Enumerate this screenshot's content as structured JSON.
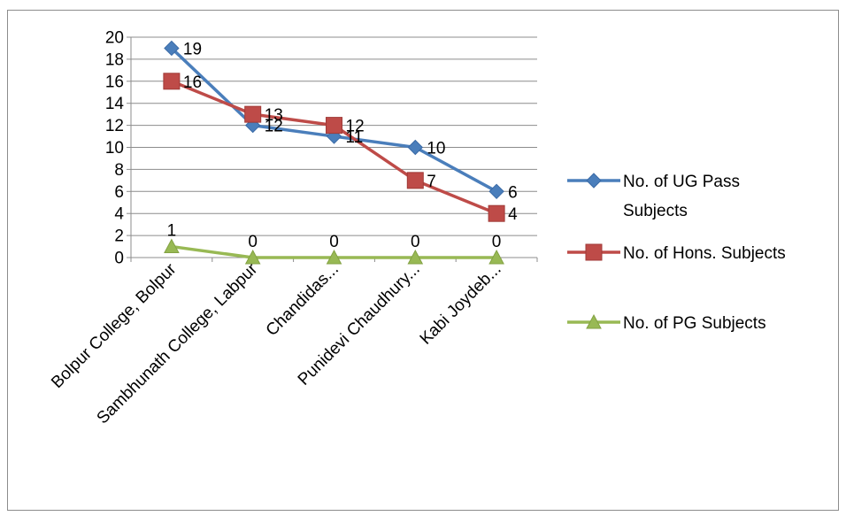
{
  "chart_data": {
    "type": "line",
    "categories": [
      "Bolpur College, Bolpur",
      "Sambhunath College, Labpur",
      "Chandidas...",
      "Punidevi Chaudhury...",
      "Kabi Joydeb..."
    ],
    "series": [
      {
        "name": "No. of  UG Pass Subjects",
        "values": [
          19,
          12,
          11,
          10,
          6
        ],
        "color": "#4a7ebb",
        "marker": "diamond"
      },
      {
        "name": "No. of  Hons. Subjects",
        "values": [
          16,
          13,
          12,
          7,
          4
        ],
        "color": "#be4b48",
        "marker": "square"
      },
      {
        "name": "No. of PG Subjects",
        "values": [
          1,
          0,
          0,
          0,
          0
        ],
        "color": "#98b954",
        "marker": "triangle"
      }
    ],
    "legend_lines": [
      [
        "No. of  UG Pass",
        "Subjects"
      ],
      [
        "No. of  Hons. Subjects"
      ],
      [
        "No. of PG Subjects"
      ]
    ],
    "ylim": [
      0,
      20
    ],
    "yticks": [
      "0",
      "2",
      "4",
      "6",
      "8",
      "10",
      "12",
      "14",
      "16",
      "18",
      "20"
    ],
    "grid": true,
    "legend_position": "right"
  }
}
